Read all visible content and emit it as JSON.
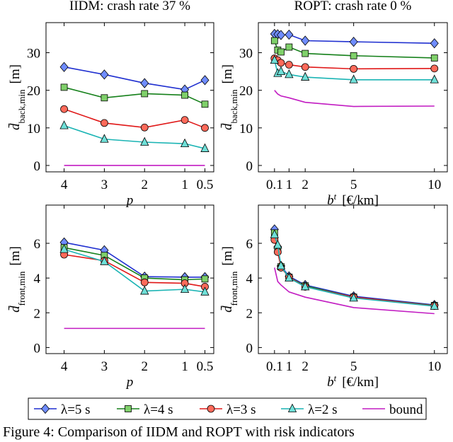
{
  "legend": {
    "series": [
      {
        "name": "λ=5 s",
        "color": "#1f2fd0",
        "marker": "diamond",
        "marker_fill": "#6f8cff"
      },
      {
        "name": "λ=4 s",
        "color": "#15801a",
        "marker": "square",
        "marker_fill": "#7fd06a"
      },
      {
        "name": "λ=3 s",
        "color": "#e01818",
        "marker": "circle",
        "marker_fill": "#ff6a5a"
      },
      {
        "name": "λ=2 s",
        "color": "#1ab4b4",
        "marker": "triangle",
        "marker_fill": "#6fe0d8"
      },
      {
        "name": "bound",
        "color": "#c21cc2",
        "marker": "none",
        "marker_fill": "#c21cc2"
      }
    ]
  },
  "chart_data": [
    {
      "type": "line",
      "title": "IIDM: crash rate 37 %",
      "y_label": {
        "symbol": "d̄",
        "subscript": "back,min",
        "unit": "[m]"
      },
      "x_label": {
        "symbol": "p"
      },
      "x": [
        4,
        3,
        2,
        1,
        0.5
      ],
      "xlim": [
        4.45,
        0.28
      ],
      "xticks": [
        4,
        3,
        2,
        1,
        0.5
      ],
      "ylim": [
        -1.7,
        38
      ],
      "yticks": [
        0,
        10,
        20,
        30
      ],
      "series": [
        {
          "values": [
            26.2,
            24.2,
            21.9,
            20.2,
            22.7
          ]
        },
        {
          "values": [
            20.8,
            18.0,
            19.1,
            18.7,
            16.3
          ]
        },
        {
          "values": [
            15.0,
            11.3,
            10.1,
            12.1,
            10.0
          ]
        },
        {
          "values": [
            10.6,
            7.0,
            6.2,
            5.8,
            4.5
          ]
        },
        {
          "values": [
            0,
            0,
            0,
            0,
            0
          ]
        }
      ]
    },
    {
      "type": "line",
      "title": "ROPT: crash rate 0 %",
      "y_label": {
        "symbol": "d̄",
        "subscript": "back,min",
        "unit": "[m]"
      },
      "x_label": {
        "symbol": "b",
        "superscript": "t",
        "unit": "[€/km]"
      },
      "x": [
        0.1,
        0.3,
        0.5,
        1,
        2,
        5,
        10
      ],
      "xlim": [
        -0.9,
        10.8
      ],
      "xticks": [
        0.1,
        1,
        2,
        5,
        10
      ],
      "ylim": [
        -1.7,
        38
      ],
      "yticks": [
        0,
        10,
        20,
        30
      ],
      "series": [
        {
          "values": [
            35.0,
            34.9,
            34.7,
            34.8,
            33.2,
            32.9,
            32.5
          ]
        },
        {
          "values": [
            33.2,
            30.7,
            30.2,
            31.5,
            29.8,
            29.2,
            28.6
          ]
        },
        {
          "values": [
            28.5,
            28.0,
            27.3,
            26.8,
            26.2,
            25.7,
            25.8
          ]
        },
        {
          "values": [
            28.0,
            24.5,
            25.0,
            24.2,
            23.5,
            22.8,
            22.8
          ]
        },
        {
          "values": [
            20.0,
            19.0,
            18.5,
            18.0,
            16.8,
            15.7,
            15.8
          ]
        }
      ]
    },
    {
      "type": "line",
      "y_label": {
        "symbol": "d̄",
        "subscript": "front,min",
        "unit": "[m]"
      },
      "x_label": {
        "symbol": "p"
      },
      "x": [
        4,
        3,
        2,
        1,
        0.5
      ],
      "xlim": [
        4.45,
        0.28
      ],
      "xticks": [
        4,
        3,
        2,
        1,
        0.5
      ],
      "ylim": [
        -0.35,
        8.2
      ],
      "yticks": [
        0,
        2,
        4,
        6
      ],
      "series": [
        {
          "values": [
            6.05,
            5.6,
            4.08,
            4.05,
            4.05
          ]
        },
        {
          "values": [
            5.75,
            5.3,
            4.0,
            3.9,
            3.95
          ]
        },
        {
          "values": [
            5.35,
            5.0,
            3.75,
            3.7,
            3.5
          ]
        },
        {
          "values": [
            5.65,
            4.95,
            3.25,
            3.35,
            3.2
          ]
        },
        {
          "values": [
            1.1,
            1.1,
            1.1,
            1.1,
            1.1
          ]
        }
      ]
    },
    {
      "type": "line",
      "y_label": {
        "symbol": "d̄",
        "subscript": "front,min",
        "unit": "[m]"
      },
      "x_label": {
        "symbol": "b",
        "superscript": "t",
        "unit": "[€/km]"
      },
      "x": [
        0.1,
        0.3,
        0.5,
        1,
        2,
        5,
        10
      ],
      "xlim": [
        -0.9,
        10.8
      ],
      "xticks": [
        0.1,
        1,
        2,
        5,
        10
      ],
      "ylim": [
        -0.35,
        8.2
      ],
      "yticks": [
        0,
        2,
        4,
        6
      ],
      "series": [
        {
          "values": [
            6.8,
            5.8,
            4.7,
            4.1,
            3.6,
            2.95,
            2.45
          ]
        },
        {
          "values": [
            6.6,
            5.6,
            4.65,
            4.05,
            3.55,
            2.9,
            2.42
          ]
        },
        {
          "values": [
            6.2,
            5.5,
            4.6,
            4.05,
            3.5,
            2.9,
            2.4
          ]
        },
        {
          "values": [
            6.5,
            5.9,
            4.7,
            4.0,
            3.5,
            2.85,
            2.38
          ]
        },
        {
          "values": [
            4.6,
            3.8,
            3.6,
            3.2,
            2.9,
            2.3,
            1.95
          ]
        }
      ]
    }
  ],
  "caption": "Figure 4: Comparison of IIDM and ROPT with risk indicators"
}
